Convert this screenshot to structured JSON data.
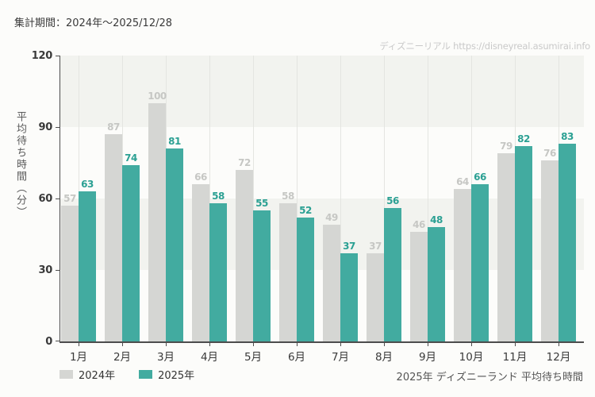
{
  "header": {
    "period_label": "集計期間：2024年～2025/12/28"
  },
  "watermark": {
    "text": "ディズニーリアル https://disneyreal.asumirai.info"
  },
  "footer": {
    "caption": "2025年 ディズニーランド 平均待ち時間"
  },
  "colors": {
    "background": "#fcfcfa",
    "band": "#f2f3ef",
    "gridline": "#e4e5e1",
    "axis": "#4d4d4d",
    "series_2024_bar": "#d5d6d3",
    "series_2024_label": "#c6c7c4",
    "series_2025_bar": "#42aba0",
    "series_2025_label": "#2ba093"
  },
  "chart_data": {
    "type": "bar",
    "title": "",
    "xlabel": "",
    "ylabel": "平均待ち時間（分）",
    "ylim": [
      0,
      120
    ],
    "yticks": [
      0,
      30,
      60,
      90,
      120
    ],
    "grid": "vertical gridlines at month centers; horizontal alternating bands every 30 units",
    "legend_position": "bottom-left",
    "categories": [
      "1月",
      "2月",
      "3月",
      "4月",
      "5月",
      "6月",
      "7月",
      "8月",
      "9月",
      "10月",
      "11月",
      "12月"
    ],
    "series": [
      {
        "name": "2024年",
        "color": "#d5d6d3",
        "label_color": "#c6c7c4",
        "values": [
          57,
          87,
          100,
          66,
          72,
          58,
          49,
          37,
          46,
          64,
          79,
          76
        ]
      },
      {
        "name": "2025年",
        "color": "#42aba0",
        "label_color": "#2ba093",
        "values": [
          63,
          74,
          81,
          58,
          55,
          52,
          37,
          56,
          48,
          66,
          82,
          83
        ]
      }
    ]
  }
}
